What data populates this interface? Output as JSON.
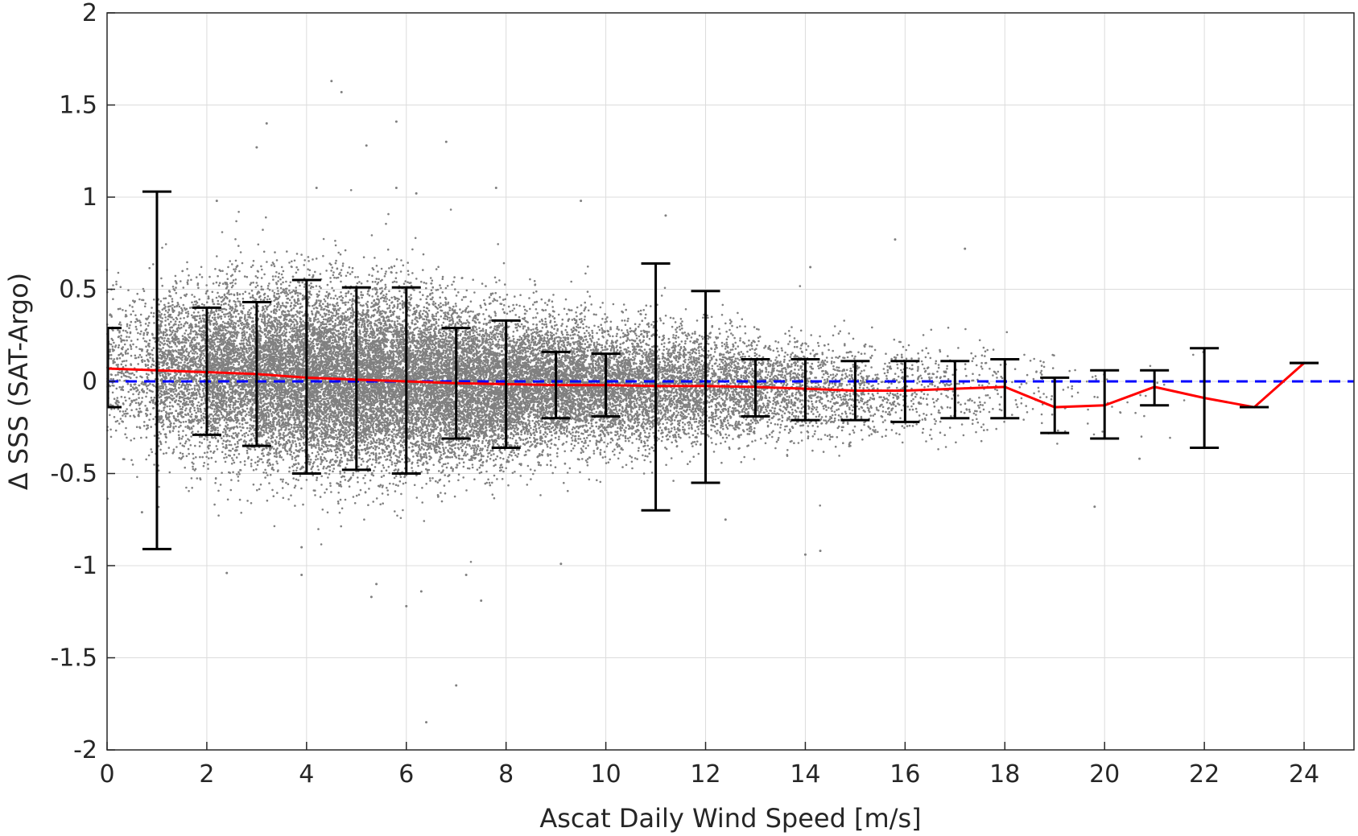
{
  "chart_data": {
    "type": "scatter",
    "xlabel": "Ascat Daily Wind Speed [m/s]",
    "ylabel": "Δ SSS (SAT-Argo)",
    "xlim": [
      0,
      25
    ],
    "ylim": [
      -2,
      2
    ],
    "grid": true,
    "xticks": [
      0,
      2,
      4,
      6,
      8,
      10,
      12,
      14,
      16,
      18,
      20,
      22,
      24
    ],
    "yticks": [
      -2,
      -1.5,
      -1,
      -0.5,
      0,
      0.5,
      1,
      1.5,
      2
    ],
    "xtick_labels": [
      "0",
      "2",
      "4",
      "6",
      "8",
      "10",
      "12",
      "14",
      "16",
      "18",
      "20",
      "22",
      "24"
    ],
    "ytick_labels": [
      "-2",
      "-1.5",
      "-1",
      "-0.5",
      "0",
      "0.5",
      "1",
      "1.5",
      "2"
    ],
    "reference_line": {
      "y": 0,
      "color": "#0000ff",
      "style": "dashed"
    },
    "colors": {
      "scatter": "#808080",
      "mean_line": "#ff0000",
      "error_bars": "#000000",
      "reference": "#0000ff"
    },
    "mean_line": {
      "x": [
        0,
        1,
        2,
        3,
        4,
        5,
        6,
        7,
        8,
        9,
        10,
        11,
        12,
        13,
        14,
        15,
        16,
        17,
        18,
        19,
        20,
        21,
        22,
        23,
        24
      ],
      "y": [
        0.07,
        0.06,
        0.05,
        0.04,
        0.02,
        0.01,
        0.0,
        -0.01,
        -0.015,
        -0.02,
        -0.02,
        -0.025,
        -0.025,
        -0.03,
        -0.04,
        -0.05,
        -0.05,
        -0.04,
        -0.03,
        -0.14,
        -0.13,
        -0.03,
        -0.09,
        -0.14,
        0.1
      ]
    },
    "error_bars": [
      {
        "x": 0,
        "low": -0.14,
        "high": 0.29
      },
      {
        "x": 1,
        "low": -0.91,
        "high": 1.03
      },
      {
        "x": 2,
        "low": -0.29,
        "high": 0.4
      },
      {
        "x": 3,
        "low": -0.35,
        "high": 0.43
      },
      {
        "x": 4,
        "low": -0.5,
        "high": 0.55
      },
      {
        "x": 5,
        "low": -0.48,
        "high": 0.51
      },
      {
        "x": 6,
        "low": -0.5,
        "high": 0.51
      },
      {
        "x": 7,
        "low": -0.31,
        "high": 0.29
      },
      {
        "x": 8,
        "low": -0.36,
        "high": 0.33
      },
      {
        "x": 9,
        "low": -0.2,
        "high": 0.16
      },
      {
        "x": 10,
        "low": -0.19,
        "high": 0.15
      },
      {
        "x": 11,
        "low": -0.7,
        "high": 0.64
      },
      {
        "x": 12,
        "low": -0.55,
        "high": 0.49
      },
      {
        "x": 13,
        "low": -0.19,
        "high": 0.12
      },
      {
        "x": 14,
        "low": -0.21,
        "high": 0.12
      },
      {
        "x": 15,
        "low": -0.21,
        "high": 0.11
      },
      {
        "x": 16,
        "low": -0.22,
        "high": 0.11
      },
      {
        "x": 17,
        "low": -0.2,
        "high": 0.11
      },
      {
        "x": 18,
        "low": -0.2,
        "high": 0.12
      },
      {
        "x": 19,
        "low": -0.28,
        "high": 0.02
      },
      {
        "x": 20,
        "low": -0.31,
        "high": 0.06
      },
      {
        "x": 21,
        "low": -0.13,
        "high": 0.06
      },
      {
        "x": 22,
        "low": -0.36,
        "high": 0.18
      },
      {
        "x": 23,
        "low": -0.14,
        "high": -0.14
      },
      {
        "x": 24,
        "low": 0.1,
        "high": 0.1
      }
    ],
    "scatter_cloud": {
      "bins": [
        {
          "x": 0.5,
          "center": 0.06,
          "spread": 0.2,
          "density": 500
        },
        {
          "x": 1.5,
          "center": 0.05,
          "spread": 0.22,
          "density": 1400
        },
        {
          "x": 2.5,
          "center": 0.05,
          "spread": 0.23,
          "density": 2200
        },
        {
          "x": 3.5,
          "center": 0.03,
          "spread": 0.24,
          "density": 2700
        },
        {
          "x": 4.5,
          "center": 0.01,
          "spread": 0.24,
          "density": 2900
        },
        {
          "x": 5.5,
          "center": 0.0,
          "spread": 0.24,
          "density": 2900
        },
        {
          "x": 6.5,
          "center": -0.01,
          "spread": 0.22,
          "density": 2700
        },
        {
          "x": 7.5,
          "center": -0.02,
          "spread": 0.2,
          "density": 2400
        },
        {
          "x": 8.5,
          "center": -0.02,
          "spread": 0.18,
          "density": 2100
        },
        {
          "x": 9.5,
          "center": -0.02,
          "spread": 0.17,
          "density": 1800
        },
        {
          "x": 10.5,
          "center": -0.03,
          "spread": 0.16,
          "density": 1500
        },
        {
          "x": 11.5,
          "center": -0.03,
          "spread": 0.15,
          "density": 1200
        },
        {
          "x": 12.5,
          "center": -0.03,
          "spread": 0.14,
          "density": 900
        },
        {
          "x": 13.5,
          "center": -0.04,
          "spread": 0.13,
          "density": 650
        },
        {
          "x": 14.5,
          "center": -0.05,
          "spread": 0.13,
          "density": 450
        },
        {
          "x": 15.5,
          "center": -0.05,
          "spread": 0.12,
          "density": 300
        },
        {
          "x": 16.5,
          "center": -0.05,
          "spread": 0.12,
          "density": 190
        },
        {
          "x": 17.5,
          "center": -0.05,
          "spread": 0.13,
          "density": 110
        },
        {
          "x": 18.5,
          "center": -0.06,
          "spread": 0.13,
          "density": 55
        },
        {
          "x": 19.5,
          "center": -0.07,
          "spread": 0.14,
          "density": 25
        },
        {
          "x": 20.5,
          "center": -0.07,
          "spread": 0.15,
          "density": 12
        },
        {
          "x": 21.5,
          "center": -0.05,
          "spread": 0.15,
          "density": 6
        }
      ],
      "outliers": [
        [
          4.5,
          1.63
        ],
        [
          4.7,
          1.57
        ],
        [
          3.2,
          1.4
        ],
        [
          5.8,
          1.41
        ],
        [
          3.0,
          1.27
        ],
        [
          5.2,
          1.28
        ],
        [
          6.8,
          1.3
        ],
        [
          4.2,
          1.05
        ],
        [
          5.8,
          1.05
        ],
        [
          6.2,
          1.02
        ],
        [
          7.8,
          1.05
        ],
        [
          2.2,
          0.98
        ],
        [
          9.5,
          0.98
        ],
        [
          11.2,
          0.9
        ],
        [
          15.8,
          0.77
        ],
        [
          17.2,
          0.72
        ],
        [
          14.1,
          0.62
        ],
        [
          5.3,
          -1.17
        ],
        [
          5.4,
          -1.1
        ],
        [
          6.0,
          -1.22
        ],
        [
          6.3,
          -1.14
        ],
        [
          3.9,
          -1.05
        ],
        [
          7.2,
          -1.05
        ],
        [
          7.5,
          -1.19
        ],
        [
          7.0,
          -1.65
        ],
        [
          6.4,
          -1.85
        ],
        [
          14.0,
          -0.94
        ],
        [
          14.3,
          -0.92
        ],
        [
          9.1,
          -0.99
        ],
        [
          12.4,
          -0.75
        ],
        [
          19.8,
          -0.68
        ],
        [
          2.4,
          -1.04
        ],
        [
          0.7,
          -0.71
        ],
        [
          20.7,
          -0.42
        ],
        [
          3.9,
          -0.9
        ]
      ]
    }
  }
}
